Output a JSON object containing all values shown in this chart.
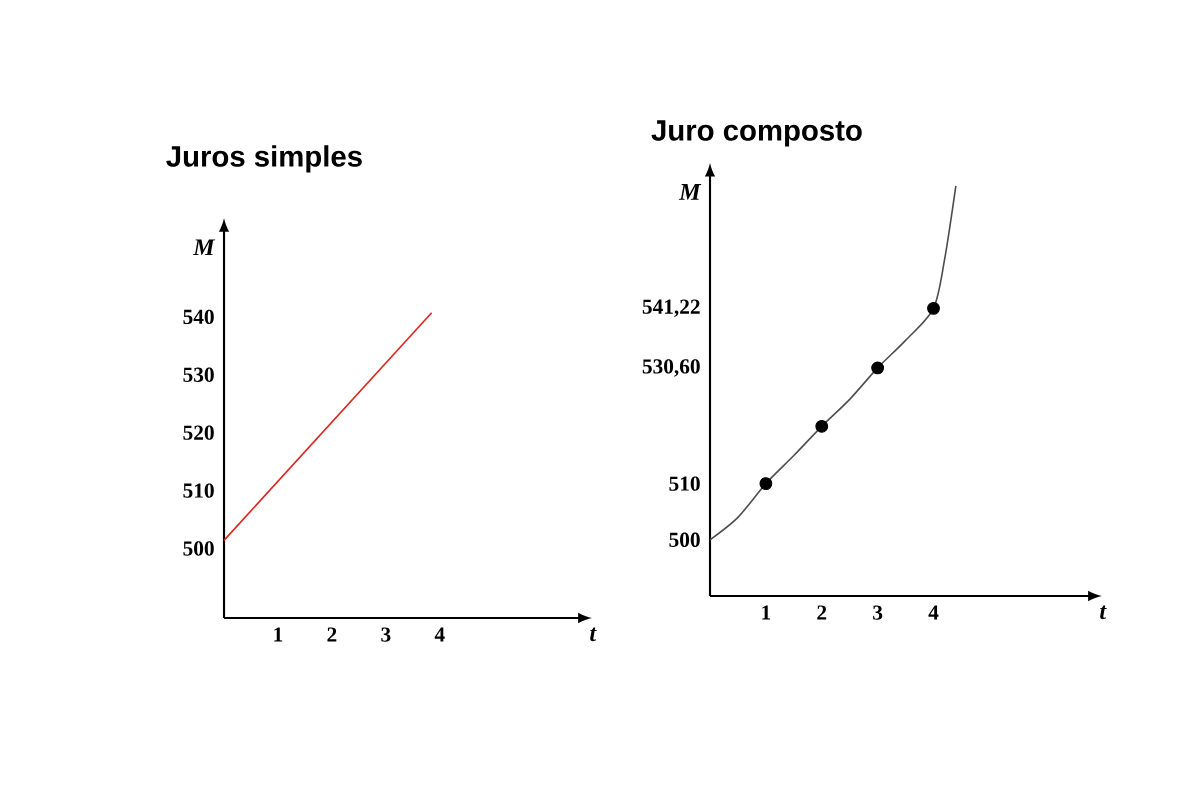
{
  "chart_data": [
    {
      "type": "line",
      "title": "Juros simples",
      "xlabel": "t",
      "ylabel": "M",
      "xlim": [
        0,
        6.6
      ],
      "ylim": [
        488,
        555
      ],
      "xticks": [
        1,
        2,
        3,
        4
      ],
      "yticks": [
        500,
        510,
        520,
        530,
        540
      ],
      "series": [
        {
          "x": [
            0,
            3.85
          ],
          "values": [
            501.4,
            540.7
          ],
          "color": "#d9261c",
          "marker": "none"
        }
      ]
    },
    {
      "type": "line",
      "title": "Juro composto",
      "xlabel": "t",
      "ylabel": "M",
      "xlim": [
        0,
        6.8
      ],
      "ylim": [
        490,
        565
      ],
      "xticks": [
        1,
        2,
        3,
        4
      ],
      "yticks": [
        500,
        510,
        {
          "value": 530.6,
          "label": "530,60"
        },
        {
          "value": 541.22,
          "label": "541,22"
        }
      ],
      "series": [
        {
          "x": [
            0,
            0.5,
            1,
            1.5,
            2,
            2.5,
            3,
            3.5,
            4,
            4.2,
            4.4
          ],
          "values": [
            500,
            504,
            510,
            515,
            520.2,
            525,
            530.6,
            535.5,
            541.2,
            550,
            563
          ],
          "color": "#4d4d4d",
          "marker": "none"
        },
        {
          "type": "scatter",
          "x": [
            1,
            2,
            3,
            4
          ],
          "values": [
            510,
            520.2,
            530.6,
            541.2
          ],
          "color": "#000000",
          "marker": "circle"
        }
      ]
    }
  ]
}
